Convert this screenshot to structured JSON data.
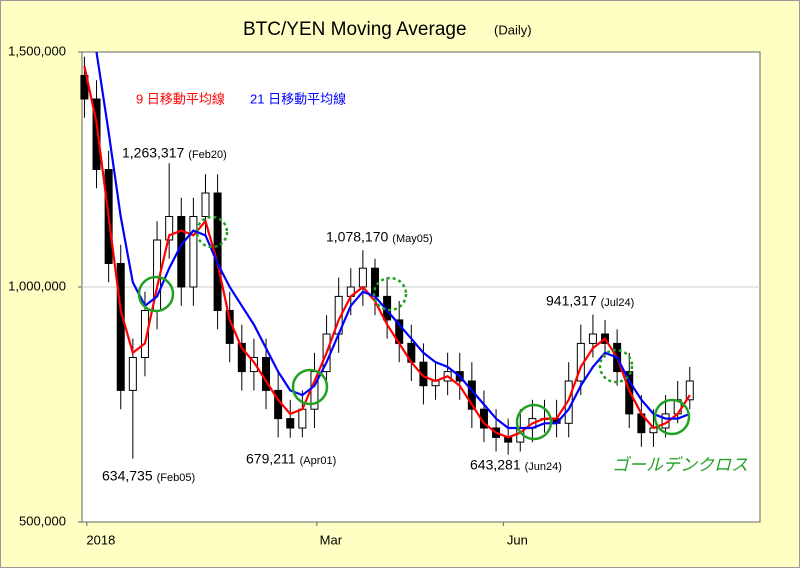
{
  "chart_data": {
    "type": "candlestick",
    "title": "BTC/YEN  Moving Average",
    "subtitle": "(Daily)",
    "x": [
      1,
      6,
      11,
      16,
      21,
      26,
      31,
      36,
      41,
      46,
      51,
      56,
      61,
      66,
      71,
      76,
      81,
      86,
      91,
      96,
      101,
      106,
      111,
      116,
      121,
      126,
      131,
      136,
      141,
      146,
      151,
      156,
      161,
      166,
      171,
      176,
      181,
      186,
      191,
      196,
      201,
      206,
      211,
      216,
      221,
      226,
      231,
      236,
      241,
      246,
      251
    ],
    "open": [
      1450000,
      1400000,
      1250000,
      1050000,
      780000,
      850000,
      950000,
      1100000,
      1150000,
      1000000,
      1150000,
      1200000,
      950000,
      880000,
      820000,
      850000,
      780000,
      720000,
      700000,
      740000,
      820000,
      900000,
      980000,
      1000000,
      1040000,
      980000,
      930000,
      880000,
      840000,
      790000,
      800000,
      820000,
      800000,
      740000,
      700000,
      680000,
      670000,
      700000,
      720000,
      720000,
      710000,
      800000,
      880000,
      900000,
      880000,
      820000,
      730000,
      690000,
      700000,
      730000,
      760000
    ],
    "high": [
      1490000,
      1440000,
      1290000,
      1090000,
      890000,
      990000,
      1140000,
      1263317,
      1190000,
      1190000,
      1240000,
      1240000,
      990000,
      920000,
      890000,
      890000,
      820000,
      760000,
      780000,
      860000,
      940000,
      1020000,
      1040000,
      1078170,
      1060000,
      1020000,
      970000,
      920000,
      880000,
      840000,
      860000,
      860000,
      840000,
      780000,
      740000,
      720000,
      740000,
      760000,
      760000,
      760000,
      840000,
      920000,
      941317,
      930000,
      910000,
      860000,
      770000,
      740000,
      770000,
      800000,
      830000
    ],
    "low": [
      1360000,
      1210000,
      1010000,
      740000,
      634735,
      810000,
      910000,
      1060000,
      960000,
      960000,
      1110000,
      910000,
      840000,
      780000,
      780000,
      740000,
      680000,
      679211,
      680000,
      700000,
      780000,
      860000,
      940000,
      960000,
      940000,
      890000,
      840000,
      800000,
      750000,
      760000,
      770000,
      760000,
      700000,
      670000,
      650000,
      643281,
      650000,
      670000,
      690000,
      680000,
      680000,
      770000,
      850000,
      850000,
      790000,
      700000,
      660000,
      660000,
      680000,
      710000,
      740000
    ],
    "close": [
      1400000,
      1250000,
      1050000,
      780000,
      850000,
      950000,
      1100000,
      1150000,
      1000000,
      1150000,
      1200000,
      950000,
      880000,
      820000,
      850000,
      780000,
      720000,
      700000,
      740000,
      820000,
      900000,
      980000,
      1000000,
      1040000,
      980000,
      930000,
      880000,
      840000,
      790000,
      800000,
      820000,
      800000,
      740000,
      700000,
      680000,
      670000,
      700000,
      720000,
      720000,
      710000,
      800000,
      880000,
      900000,
      880000,
      820000,
      730000,
      690000,
      700000,
      730000,
      760000,
      800000
    ],
    "series": [
      {
        "name": "9 日移動平均線",
        "color": "#ff0000",
        "values": [
          1470000,
          1350000,
          1150000,
          950000,
          860000,
          880000,
          1000000,
          1110000,
          1120000,
          1110000,
          1140000,
          1050000,
          930000,
          870000,
          840000,
          800000,
          760000,
          730000,
          740000,
          800000,
          860000,
          930000,
          980000,
          1000000,
          970000,
          920000,
          880000,
          840000,
          810000,
          800000,
          810000,
          790000,
          750000,
          710000,
          690000,
          680000,
          690000,
          710000,
          720000,
          720000,
          760000,
          830000,
          870000,
          890000,
          850000,
          780000,
          730000,
          700000,
          710000,
          730000,
          770000
        ]
      },
      {
        "name": "21 日移動平均線",
        "color": "#0000ff",
        "values": [
          null,
          1500000,
          1330000,
          1150000,
          1010000,
          960000,
          980000,
          1040000,
          1090000,
          1120000,
          1110000,
          1050000,
          1000000,
          960000,
          920000,
          870000,
          820000,
          780000,
          770000,
          790000,
          840000,
          900000,
          960000,
          990000,
          980000,
          950000,
          920000,
          890000,
          860000,
          840000,
          830000,
          810000,
          780000,
          750000,
          720000,
          700000,
          700000,
          700000,
          710000,
          710000,
          740000,
          790000,
          830000,
          860000,
          850000,
          800000,
          760000,
          730000,
          720000,
          720000,
          730000
        ]
      }
    ],
    "xlim": [
      0,
      280
    ],
    "xticks": [
      {
        "value": 2,
        "label": "2018"
      },
      {
        "value": 97,
        "label": "Mar"
      },
      {
        "value": 174,
        "label": "Jun"
      }
    ],
    "ylim": [
      500000,
      1500000
    ],
    "yticks": [
      {
        "value": 500000,
        "label": "500,000"
      },
      {
        "value": 1000000,
        "label": "1,000,000"
      },
      {
        "value": 1500000,
        "label": "1,500,000"
      }
    ],
    "grid": true,
    "annotations": [
      {
        "text": "1,263,317",
        "date": "(Feb20)"
      },
      {
        "text": "1,078,170",
        "date": "(May05)"
      },
      {
        "text": "941,317",
        "date": "(Jul24)"
      },
      {
        "text": "634,735",
        "date": "(Feb05)"
      },
      {
        "text": "679,211",
        "date": "(Apr01)"
      },
      {
        "text": "643,281",
        "date": "(Jun24)"
      }
    ],
    "cross_label": "ゴールデンクロス"
  }
}
